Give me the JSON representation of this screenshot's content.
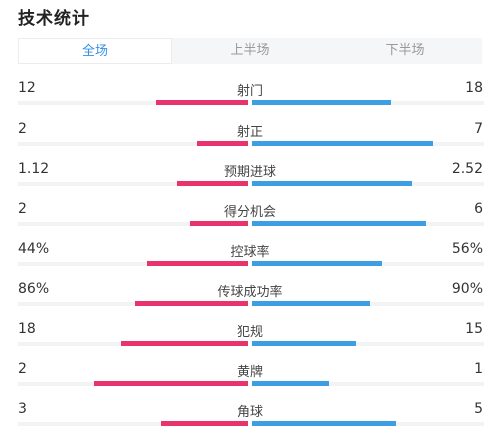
{
  "title": "技术统计",
  "tabs": [
    {
      "label": "全场",
      "active": true
    },
    {
      "label": "上半场",
      "active": false
    },
    {
      "label": "下半场",
      "active": false
    }
  ],
  "colors": {
    "home_bar": "#e8336d",
    "away_bar": "#3d9ee4",
    "active_tab": "#3a8ee6"
  },
  "stats": [
    {
      "label": "射门",
      "home": "12",
      "away": "18",
      "home_fill": 0.4,
      "away_fill": 0.6
    },
    {
      "label": "射正",
      "home": "2",
      "away": "7",
      "home_fill": 0.22,
      "away_fill": 0.78
    },
    {
      "label": "预期进球",
      "home": "1.12",
      "away": "2.52",
      "home_fill": 0.31,
      "away_fill": 0.69
    },
    {
      "label": "得分机会",
      "home": "2",
      "away": "6",
      "home_fill": 0.25,
      "away_fill": 0.75
    },
    {
      "label": "控球率",
      "home": "44%",
      "away": "56%",
      "home_fill": 0.44,
      "away_fill": 0.56
    },
    {
      "label": "传球成功率",
      "home": "86%",
      "away": "90%",
      "home_fill": 0.49,
      "away_fill": 0.51
    },
    {
      "label": "犯规",
      "home": "18",
      "away": "15",
      "home_fill": 0.55,
      "away_fill": 0.45
    },
    {
      "label": "黄牌",
      "home": "2",
      "away": "1",
      "home_fill": 0.67,
      "away_fill": 0.33
    },
    {
      "label": "角球",
      "home": "3",
      "away": "5",
      "home_fill": 0.38,
      "away_fill": 0.62
    }
  ]
}
